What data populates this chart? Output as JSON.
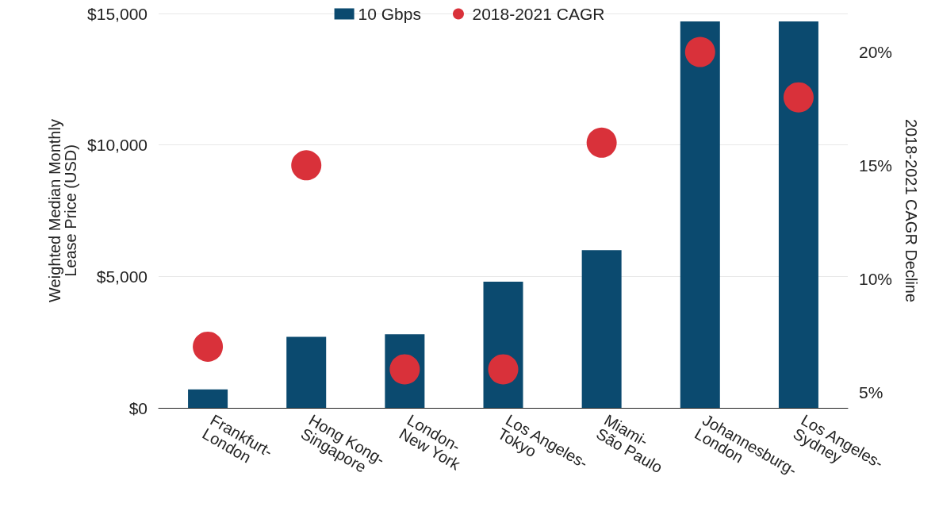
{
  "chart_data": {
    "type": "bar",
    "ylabel": "Weighted Median Monthly\nLease Price (USD)",
    "y2label": "2018-2021 CAGR Decline",
    "categories": [
      "Frankfurt-London",
      "Hong Kong-Singapore",
      "London-New York",
      "Los Angeles-Tokyo",
      "Miami-São Paulo",
      "Johannesburg-London",
      "Los Angeles-Sydney"
    ],
    "series": [
      {
        "name": "10 Gbps",
        "type": "bar",
        "color": "#0b4a6f",
        "values": [
          700,
          2700,
          2800,
          4800,
          6000,
          14700,
          14700
        ]
      },
      {
        "name": "2018-2021 CAGR",
        "type": "scatter",
        "axis": "y2",
        "color": "#d9313a",
        "values": [
          7,
          15,
          6,
          6,
          16,
          20,
          18
        ]
      }
    ],
    "ylim": [
      0,
      15000
    ],
    "yticks": [
      {
        "value": 0,
        "label": "$0"
      },
      {
        "value": 5000,
        "label": "$5,000"
      },
      {
        "value": 10000,
        "label": "$10,000"
      },
      {
        "value": 15000,
        "label": "$15,000"
      }
    ],
    "y2lim": [
      4.3,
      21.7
    ],
    "y2ticks": [
      {
        "value": 5,
        "label": "5%"
      },
      {
        "value": 10,
        "label": "10%"
      },
      {
        "value": 15,
        "label": "15%"
      },
      {
        "value": 20,
        "label": "20%"
      }
    ],
    "grid": "y",
    "legend": "top",
    "marker": "circle"
  }
}
